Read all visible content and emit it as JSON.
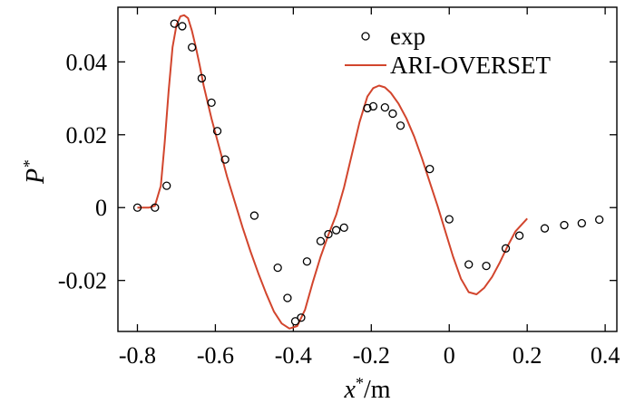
{
  "chart_data": {
    "type": "scatter",
    "title": "",
    "xlabel": "x*/m",
    "ylabel": "P*",
    "xlim": [
      -0.85,
      0.43
    ],
    "ylim": [
      -0.034,
      0.055
    ],
    "grid": false,
    "legend_position": "top-right",
    "xticks": [
      -0.8,
      -0.6,
      -0.4,
      -0.2,
      0,
      0.2,
      0.4
    ],
    "xtick_labels": [
      "-0.8",
      "-0.6",
      "-0.4",
      "-0.2",
      "0",
      "0.2",
      "0.4"
    ],
    "yticks": [
      -0.02,
      0,
      0.02,
      0.04
    ],
    "ytick_labels": [
      "-0.02",
      "0",
      "0.02",
      "0.04"
    ],
    "series": [
      {
        "name": "exp",
        "kind": "scatter",
        "color": "#000000",
        "x": [
          -0.8,
          -0.755,
          -0.725,
          -0.705,
          -0.685,
          -0.66,
          -0.635,
          -0.61,
          -0.595,
          -0.575,
          -0.5,
          -0.44,
          -0.415,
          -0.395,
          -0.38,
          -0.365,
          -0.33,
          -0.31,
          -0.29,
          -0.27,
          -0.21,
          -0.195,
          -0.165,
          -0.145,
          -0.125,
          -0.05,
          0,
          0.05,
          0.095,
          0.145,
          0.18,
          0.245,
          0.295,
          0.34,
          0.385
        ],
        "y": [
          0.0,
          0.0,
          0.006,
          0.0505,
          0.0498,
          0.044,
          0.0355,
          0.0288,
          0.021,
          0.0132,
          -0.0022,
          -0.0165,
          -0.0248,
          -0.0312,
          -0.0302,
          -0.0148,
          -0.0092,
          -0.0073,
          -0.0062,
          -0.0055,
          0.0273,
          0.0278,
          0.0275,
          0.0258,
          0.0225,
          0.0106,
          -0.0032,
          -0.0156,
          -0.016,
          -0.0112,
          -0.0077,
          -0.0057,
          -0.0048,
          -0.0043,
          -0.0033
        ]
      },
      {
        "name": "ARI-OVERSET",
        "kind": "line",
        "color": "#d2452d",
        "x": [
          -0.8,
          -0.77,
          -0.755,
          -0.74,
          -0.73,
          -0.72,
          -0.71,
          -0.7,
          -0.69,
          -0.68,
          -0.67,
          -0.66,
          -0.65,
          -0.64,
          -0.63,
          -0.61,
          -0.59,
          -0.57,
          -0.55,
          -0.53,
          -0.51,
          -0.49,
          -0.47,
          -0.45,
          -0.43,
          -0.41,
          -0.39,
          -0.37,
          -0.35,
          -0.33,
          -0.31,
          -0.29,
          -0.27,
          -0.25,
          -0.23,
          -0.21,
          -0.195,
          -0.18,
          -0.165,
          -0.15,
          -0.13,
          -0.11,
          -0.09,
          -0.07,
          -0.05,
          -0.03,
          -0.01,
          0.01,
          0.03,
          0.05,
          0.07,
          0.09,
          0.11,
          0.13,
          0.15,
          0.17,
          0.2
        ],
        "y": [
          0.0,
          0.0,
          0.0005,
          0.006,
          0.018,
          0.032,
          0.044,
          0.05,
          0.0525,
          0.0528,
          0.052,
          0.0485,
          0.044,
          0.039,
          0.0335,
          0.0245,
          0.0165,
          0.0085,
          0.0015,
          -0.0055,
          -0.012,
          -0.018,
          -0.0235,
          -0.0285,
          -0.0318,
          -0.0332,
          -0.0325,
          -0.028,
          -0.0205,
          -0.0135,
          -0.0075,
          -0.002,
          0.0055,
          0.0145,
          0.0235,
          0.0305,
          0.0328,
          0.0335,
          0.033,
          0.0315,
          0.0285,
          0.0245,
          0.0195,
          0.0135,
          0.007,
          0.0005,
          -0.0065,
          -0.0135,
          -0.0195,
          -0.0232,
          -0.0238,
          -0.022,
          -0.019,
          -0.015,
          -0.0105,
          -0.0065,
          -0.003
        ]
      }
    ]
  }
}
